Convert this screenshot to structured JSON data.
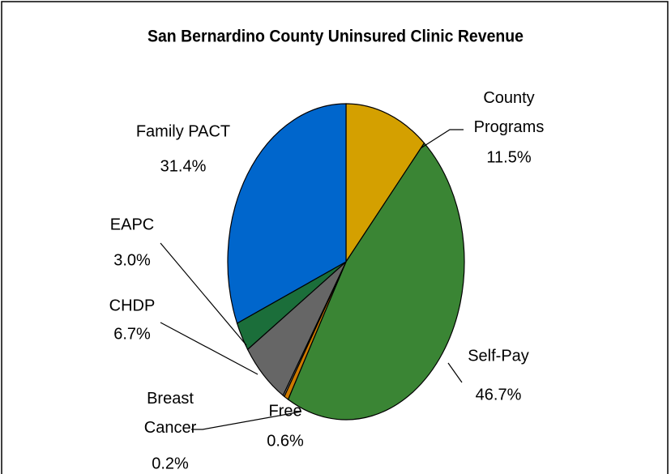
{
  "chart_data": {
    "type": "pie",
    "title": "San Bernardino County Uninsured Clinic Revenue",
    "categories": [
      "County Programs",
      "Self-Pay",
      "Free",
      "Breast Cancer",
      "CHDP",
      "EAPC",
      "Family PACT"
    ],
    "values": [
      11.5,
      46.7,
      0.6,
      0.2,
      6.7,
      3.0,
      31.4
    ],
    "value_labels": [
      "11.5%",
      "46.7%",
      "0.6%",
      "0.2%",
      "6.7%",
      "3.0%",
      "31.4%"
    ],
    "colors": [
      "#D4A000",
      "#3A8534",
      "#CC7A00",
      "#8C8C8C",
      "#666666",
      "#1B6E3A",
      "#0066CC"
    ]
  }
}
